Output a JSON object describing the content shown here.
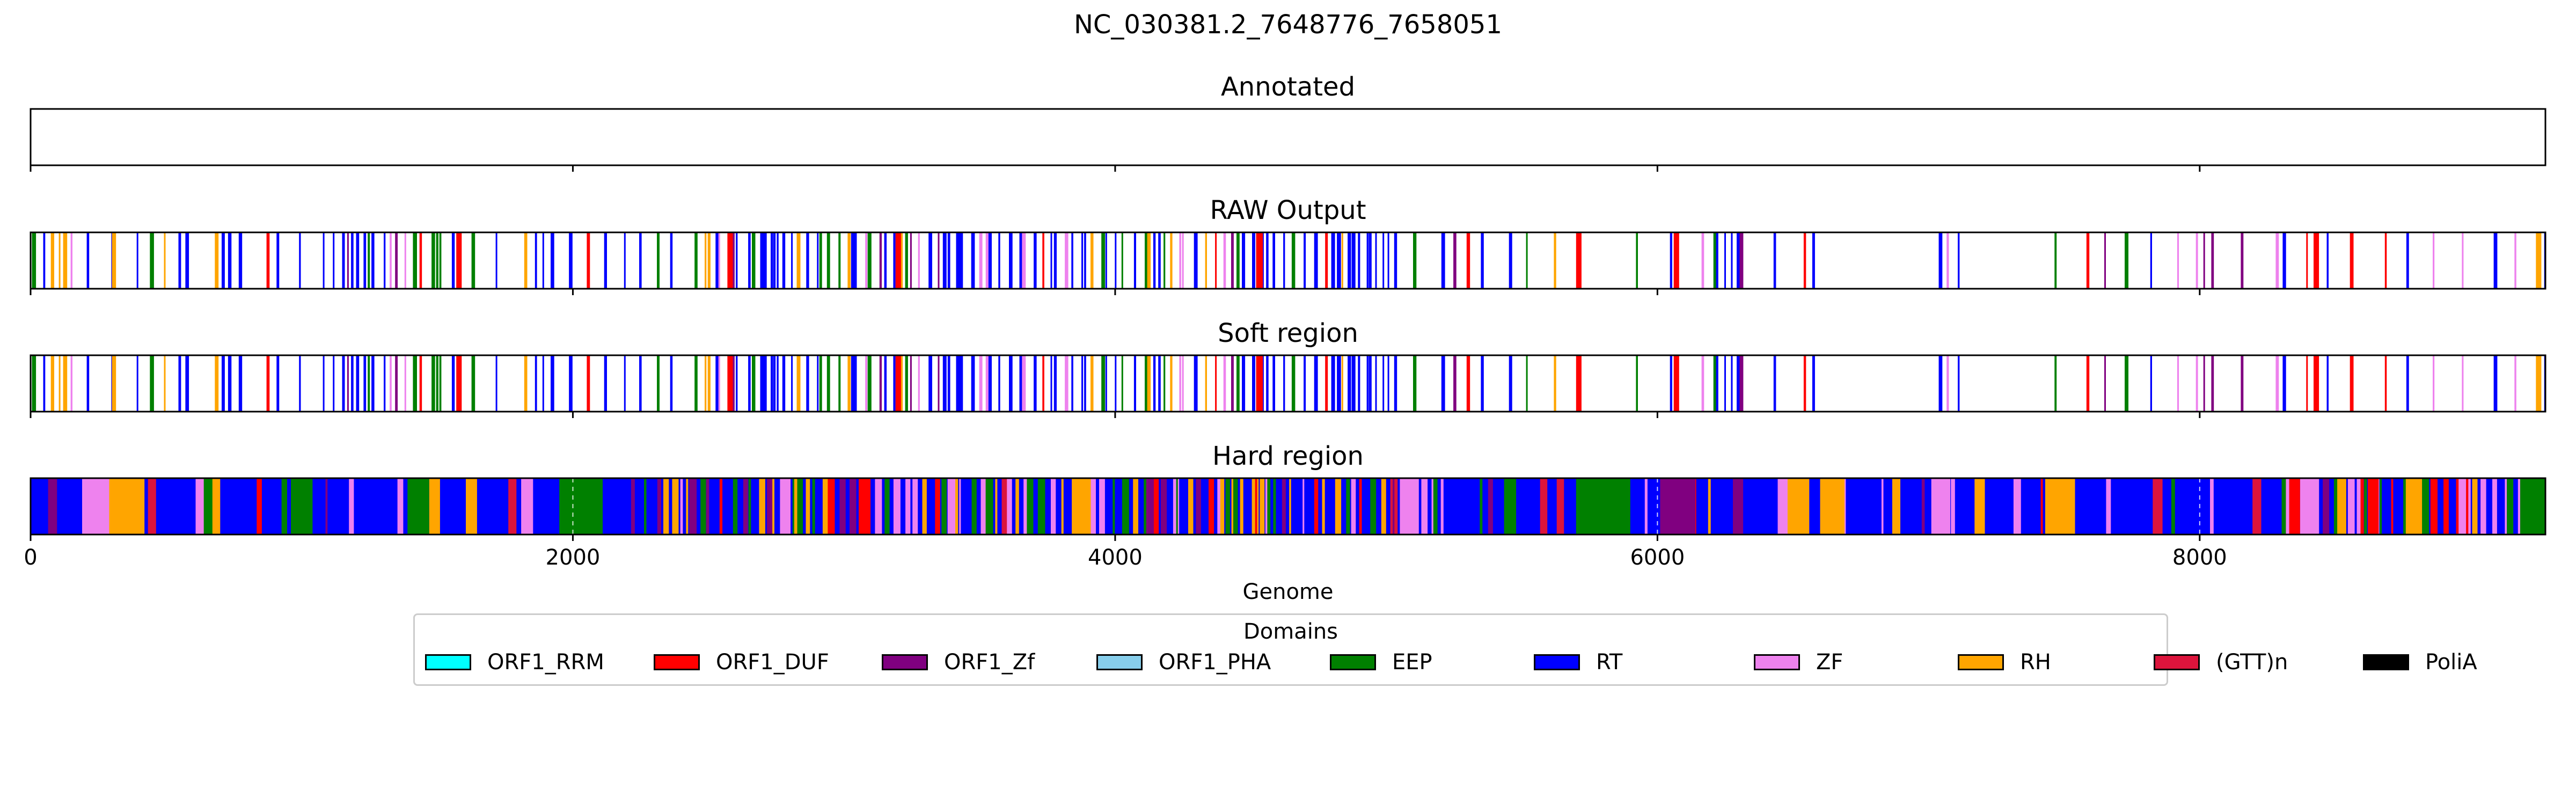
{
  "chart_data": {
    "type": "genome-track",
    "title": "NC_030381.2_7648776_7658051",
    "xlabel": "Genome",
    "xlim": [
      0,
      9275
    ],
    "xticks": [
      0,
      2000,
      4000,
      6000,
      8000
    ],
    "tracks": [
      {
        "name": "Annotated",
        "features": []
      },
      {
        "name": "RAW Output",
        "style": "sparse",
        "seed": 11,
        "features": [
          {
            "domain": "EEP",
            "start": 5,
            "end": 20
          },
          {
            "domain": "RH",
            "start": 120,
            "end": 135
          },
          {
            "domain": "RH",
            "start": 300,
            "end": 315
          },
          {
            "domain": "EEP",
            "start": 440,
            "end": 455
          },
          {
            "domain": "ORF1_DUF",
            "start": 1570,
            "end": 1590
          },
          {
            "domain": "EEP",
            "start": 1410,
            "end": 1425
          },
          {
            "domain": "ORF1_DUF",
            "start": 2570,
            "end": 2590
          },
          {
            "domain": "ORF1_DUF",
            "start": 3190,
            "end": 3210
          },
          {
            "domain": "ORF1_DUF",
            "start": 4520,
            "end": 4545
          },
          {
            "domain": "ORF1_DUF",
            "start": 5700,
            "end": 5720
          },
          {
            "domain": "ORF1_DUF",
            "start": 6060,
            "end": 6080
          },
          {
            "domain": "ORF1_DUF",
            "start": 8420,
            "end": 8440
          },
          {
            "domain": "RH",
            "start": 9240,
            "end": 9260
          }
        ]
      },
      {
        "name": "Soft region",
        "style": "sparse",
        "seed": 11,
        "features": []
      },
      {
        "name": "Hard region",
        "style": "dense",
        "seed": 29,
        "features": [
          {
            "domain": "RT",
            "start": 0,
            "end": 9275
          },
          {
            "domain": "ZF",
            "start": 190,
            "end": 290
          },
          {
            "domain": "RH",
            "start": 290,
            "end": 420
          },
          {
            "domain": "EEP",
            "start": 960,
            "end": 1040
          },
          {
            "domain": "RH",
            "start": 1470,
            "end": 1510
          },
          {
            "domain": "EEP",
            "start": 1390,
            "end": 1470
          },
          {
            "domain": "EEP",
            "start": 1950,
            "end": 2110
          },
          {
            "domain": "RH",
            "start": 3840,
            "end": 3910
          },
          {
            "domain": "ZF",
            "start": 5050,
            "end": 5120
          },
          {
            "domain": "EEP",
            "start": 5700,
            "end": 5900
          },
          {
            "domain": "ORF1_Zf",
            "start": 6010,
            "end": 6140
          },
          {
            "domain": "RH",
            "start": 6480,
            "end": 6560
          },
          {
            "domain": "RH",
            "start": 6600,
            "end": 6690
          },
          {
            "domain": "ZF",
            "start": 7010,
            "end": 7080
          },
          {
            "domain": "RH",
            "start": 7430,
            "end": 7540
          },
          {
            "domain": "ZF",
            "start": 8370,
            "end": 8440
          },
          {
            "domain": "ORF1_DUF",
            "start": 8330,
            "end": 8370
          },
          {
            "domain": "ORF1_DUF",
            "start": 8620,
            "end": 8660
          },
          {
            "domain": "RH",
            "start": 8760,
            "end": 8820
          },
          {
            "domain": "EEP",
            "start": 9200,
            "end": 9275
          }
        ]
      }
    ],
    "legend": {
      "title": "Domains",
      "position": "bottom-center",
      "items": [
        {
          "name": "ORF1_RRM",
          "color": "#00ffff"
        },
        {
          "name": "ORF1_DUF",
          "color": "#ff0000"
        },
        {
          "name": "ORF1_Zf",
          "color": "#800080"
        },
        {
          "name": "ORF1_PHA",
          "color": "#87ceeb"
        },
        {
          "name": "EEP",
          "color": "#008000"
        },
        {
          "name": "RT",
          "color": "#0000ff"
        },
        {
          "name": "ZF",
          "color": "#ee82ee"
        },
        {
          "name": "RH",
          "color": "#ffa500"
        },
        {
          "name": "(GTT)n",
          "color": "#dc143c"
        },
        {
          "name": "PoliA",
          "color": "#000000"
        }
      ]
    }
  }
}
